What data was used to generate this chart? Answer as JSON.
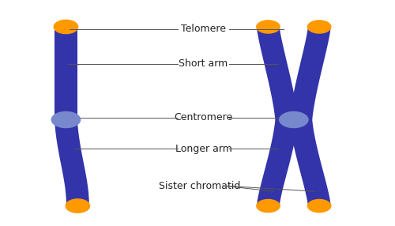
{
  "bg_color": "#ffffff",
  "chromosome_color": "#3333aa",
  "telomere_color": "#ff9900",
  "centromere_color": "#7788cc",
  "line_color": "#555555",
  "labels": {
    "telomere": "Telomere",
    "short_arm": "Short arm",
    "centromere": "Centromere",
    "longer_arm": "Longer arm",
    "sister_chromatid": "Sister chromatid"
  },
  "label_fontsize": 9,
  "fig_width": 5.0,
  "fig_height": 2.86
}
